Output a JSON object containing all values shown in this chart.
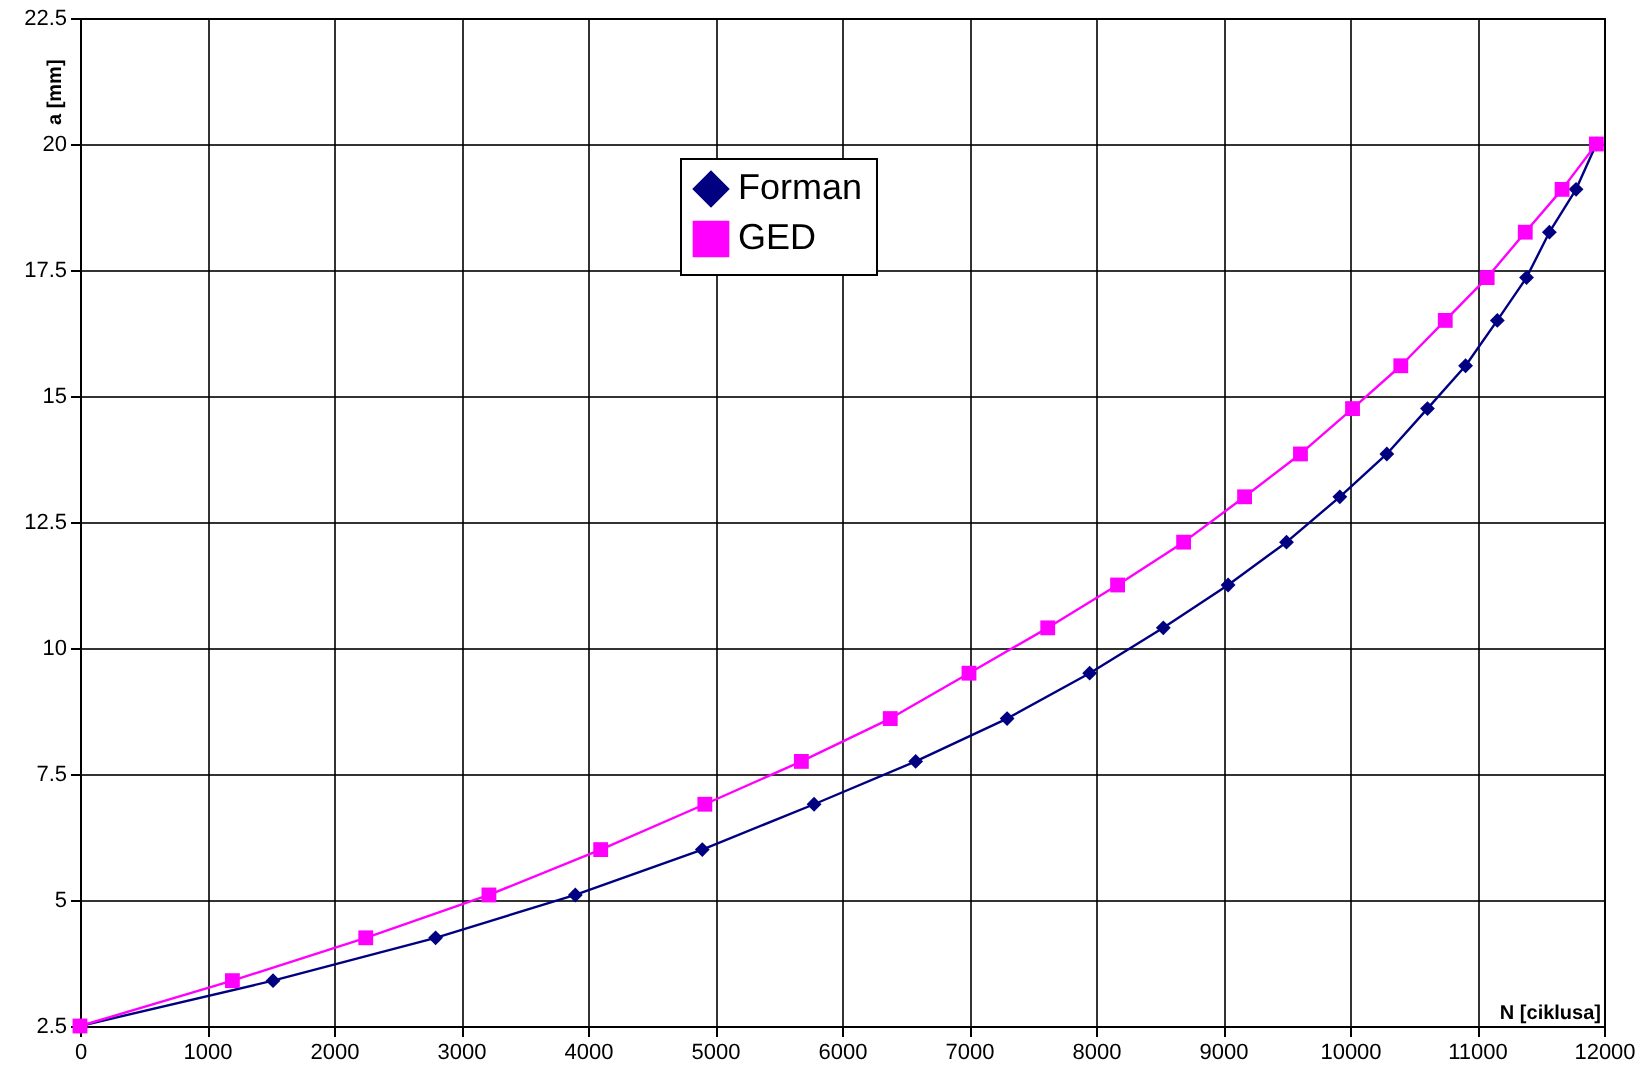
{
  "chart_data": {
    "type": "line",
    "xlabel": "N [ciklusa]",
    "ylabel": "a [mm]",
    "xlim": [
      0,
      12000
    ],
    "xticks": [
      0,
      1000,
      2000,
      3000,
      4000,
      5000,
      6000,
      7000,
      8000,
      9000,
      10000,
      11000,
      12000
    ],
    "ylim": [
      2.5,
      22.5
    ],
    "yticks": [
      2.5,
      5,
      7.5,
      10,
      12.5,
      15,
      17.5,
      20,
      22.5
    ],
    "grid": true,
    "legend": "top",
    "line_style": "solid",
    "series": [
      {
        "name": "Forman",
        "color": "#000080",
        "marker": "diamond",
        "x": [
          0,
          1520,
          2800,
          3900,
          4900,
          5780,
          6580,
          7300,
          7950,
          8530,
          9040,
          9500,
          9920,
          10290,
          10610,
          10910,
          11160,
          11390,
          11570,
          11780,
          11940
        ],
        "values": [
          2.5,
          3.4,
          4.25,
          5.1,
          6.0,
          6.9,
          7.75,
          8.6,
          9.5,
          10.4,
          11.25,
          12.1,
          13.0,
          13.85,
          14.75,
          15.6,
          16.5,
          17.35,
          18.25,
          19.1,
          20.0
        ]
      },
      {
        "name": "GED",
        "color": "#ff00ff",
        "marker": "square",
        "x": [
          0,
          1200,
          2250,
          3220,
          4100,
          4920,
          5680,
          6380,
          7000,
          7620,
          8170,
          8690,
          9170,
          9610,
          10020,
          10400,
          10750,
          11080,
          11380,
          11670,
          11940
        ],
        "values": [
          2.5,
          3.4,
          4.25,
          5.1,
          6.0,
          6.9,
          7.75,
          8.6,
          9.5,
          10.4,
          11.25,
          12.1,
          13.0,
          13.85,
          14.75,
          15.6,
          16.5,
          17.35,
          18.25,
          19.1,
          20.0
        ]
      }
    ]
  }
}
